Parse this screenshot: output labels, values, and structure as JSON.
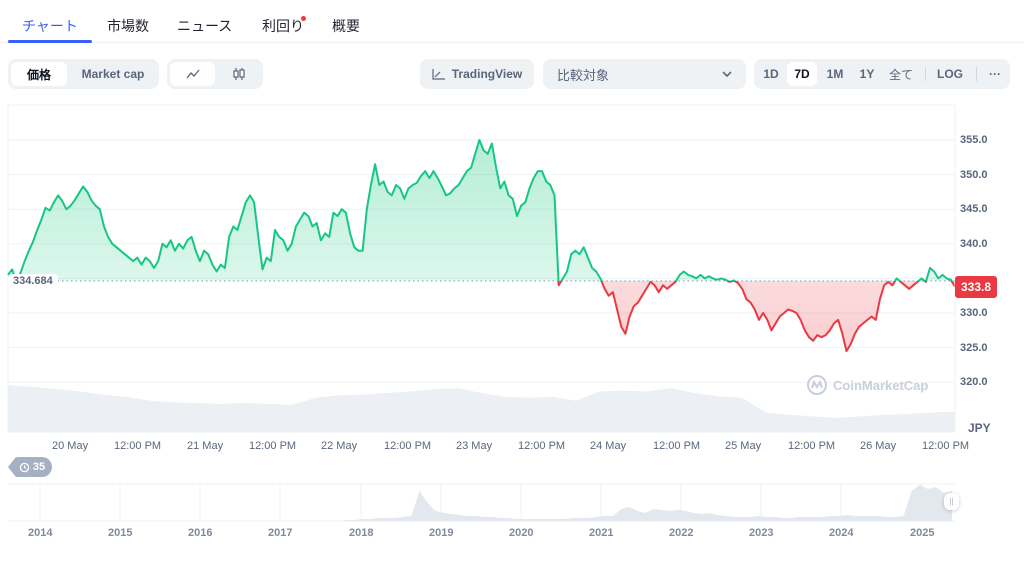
{
  "tabs": [
    {
      "label": "チャート",
      "active": true
    },
    {
      "label": "市場数"
    },
    {
      "label": "ニュース"
    },
    {
      "label": "利回り",
      "notification_dot": true
    },
    {
      "label": "概要"
    }
  ],
  "toolbar": {
    "metric_toggle": [
      "価格",
      "Market cap"
    ],
    "metric_selected": "価格",
    "chart_type_icons": [
      "line-chart-icon",
      "candlestick-icon"
    ],
    "chart_type_selected": "line",
    "tradingview_label": "TradingView",
    "compare_placeholder": "比較対象",
    "ranges": [
      "1D",
      "7D",
      "1M",
      "1Y",
      "全て"
    ],
    "range_selected": "7D",
    "log_label": "LOG",
    "more_label": "···"
  },
  "chart": {
    "baseline_label": "334.684",
    "current_price_label": "333.8",
    "currency": "JPY",
    "watermark": "CoinMarketCap",
    "history_badge": "35",
    "colors": {
      "up": "#16c784",
      "down": "#ea3943",
      "accent": "#3861fb",
      "grid": "#eff2f5",
      "volume": "#e6e9ef"
    }
  },
  "chart_data": {
    "type": "line",
    "title": "",
    "xlabel": "",
    "ylabel": "JPY",
    "ylim": [
      318,
      357
    ],
    "baseline": 334.684,
    "last_value": 333.8,
    "y_ticks": [
      "355.0",
      "350.0",
      "345.0",
      "340.0",
      "330.0",
      "325.0",
      "320.0"
    ],
    "x_ticks": [
      "20 May",
      "12:00 PM",
      "21 May",
      "12:00 PM",
      "22 May",
      "12:00 PM",
      "23 May",
      "12:00 PM",
      "24 May",
      "12:00 PM",
      "25 May",
      "12:00 PM",
      "26 May",
      "12:00 PM"
    ],
    "series": [
      {
        "name": "Price",
        "values": [
          335.5,
          336.3,
          334.5,
          335.8,
          337.5,
          339.0,
          340.3,
          342.0,
          343.5,
          345.2,
          344.8,
          346.0,
          347.0,
          346.2,
          345.0,
          345.5,
          346.3,
          347.3,
          348.3,
          347.5,
          346.3,
          345.5,
          345.0,
          342.5,
          341.0,
          340.0,
          339.5,
          339.0,
          338.5,
          338.0,
          337.5,
          338.0,
          337.0,
          338.0,
          337.5,
          336.5,
          337.5,
          340.0,
          339.5,
          340.5,
          339.0,
          340.0,
          339.3,
          340.5,
          341.0,
          339.0,
          337.5,
          339.0,
          338.5,
          337.0,
          336.0,
          337.0,
          336.5,
          341.0,
          342.5,
          342.0,
          344.0,
          346.0,
          347.0,
          346.0,
          341.0,
          336.3,
          338.0,
          337.5,
          342.0,
          341.0,
          340.5,
          339.0,
          340.0,
          342.5,
          343.5,
          344.5,
          344.0,
          342.5,
          343.0,
          340.5,
          341.5,
          341.0,
          344.5,
          344.0,
          345.0,
          344.5,
          341.5,
          339.5,
          339.0,
          339.0,
          345.0,
          348.5,
          351.5,
          348.5,
          349.0,
          347.5,
          347.0,
          348.5,
          348.0,
          346.5,
          348.0,
          348.5,
          348.8,
          349.8,
          350.5,
          349.5,
          350.5,
          349.5,
          348.3,
          347.0,
          347.3,
          348.0,
          348.5,
          349.5,
          350.5,
          351.0,
          353.0,
          355.0,
          353.5,
          353.0,
          354.5,
          351.0,
          348.0,
          349.0,
          347.0,
          346.5,
          344.0,
          345.5,
          346.0,
          348.0,
          349.5,
          350.5,
          350.5,
          349.0,
          348.5,
          347.0,
          334.0,
          335.0,
          336.0,
          338.5,
          339.0,
          338.5,
          339.5,
          338.0,
          336.5,
          336.0,
          335.0,
          333.5,
          332.5,
          333.0,
          330.5,
          328.0,
          327.0,
          329.5,
          331.0,
          331.5,
          332.5,
          333.5,
          334.5,
          334.0,
          333.0,
          334.0,
          333.5,
          334.0,
          334.5,
          335.5,
          336.0,
          335.5,
          335.3,
          335.0,
          335.5,
          335.0,
          335.3,
          335.0,
          334.8,
          335.0,
          334.8,
          334.5,
          334.7,
          334.3,
          333.5,
          332.0,
          331.5,
          330.5,
          329.0,
          330.0,
          329.0,
          327.5,
          328.5,
          329.5,
          330.0,
          330.5,
          330.3,
          330.0,
          329.0,
          327.5,
          326.5,
          326.0,
          326.8,
          326.5,
          326.8,
          327.5,
          328.5,
          329.0,
          327.0,
          324.5,
          325.5,
          327.0,
          328.0,
          328.5,
          329.0,
          329.5,
          329.0,
          332.0,
          334.0,
          334.5,
          334.0,
          335.0,
          334.5,
          334.0,
          333.5,
          334.0,
          334.5,
          335.0,
          334.5,
          336.5,
          336.0,
          335.0,
          335.5,
          335.0,
          334.8,
          333.8
        ]
      }
    ],
    "volume_series": [
      60,
      58,
      55,
      52,
      48,
      45,
      40,
      38,
      37,
      36,
      37,
      36,
      35,
      44,
      47,
      48,
      50,
      52,
      55,
      56,
      50,
      45,
      44,
      45,
      40,
      52,
      53,
      52,
      56,
      50,
      46,
      44,
      25,
      22,
      20,
      18,
      20,
      22,
      23,
      25,
      26
    ],
    "navigator": {
      "x_ticks": [
        "2014",
        "2015",
        "2016",
        "2017",
        "2018",
        "2019",
        "2020",
        "2021",
        "2022",
        "2023",
        "2024",
        "2025"
      ],
      "values": [
        0,
        0,
        0,
        0,
        0,
        0,
        0,
        0,
        0,
        0,
        0,
        0,
        0,
        0,
        0,
        0,
        0,
        0,
        0,
        0,
        0,
        0,
        0,
        0,
        0,
        0,
        0,
        0,
        0,
        0,
        0,
        0,
        0,
        0,
        0,
        0,
        0,
        0,
        0,
        0,
        0,
        0,
        1,
        1,
        2,
        2,
        3,
        3,
        3,
        4,
        5,
        30,
        18,
        10,
        8,
        7,
        6,
        5,
        5,
        4,
        4,
        3,
        3,
        2,
        2,
        2,
        2,
        2,
        2,
        2,
        3,
        3,
        3,
        4,
        5,
        5,
        12,
        14,
        10,
        8,
        12,
        11,
        10,
        11,
        10,
        8,
        7,
        8,
        6,
        5,
        4,
        4,
        4,
        5,
        4,
        4,
        3,
        3,
        4,
        4,
        4,
        4,
        5,
        5,
        6,
        5,
        5,
        5,
        5,
        4,
        4,
        5,
        30,
        36,
        32,
        34,
        28,
        30
      ]
    }
  }
}
